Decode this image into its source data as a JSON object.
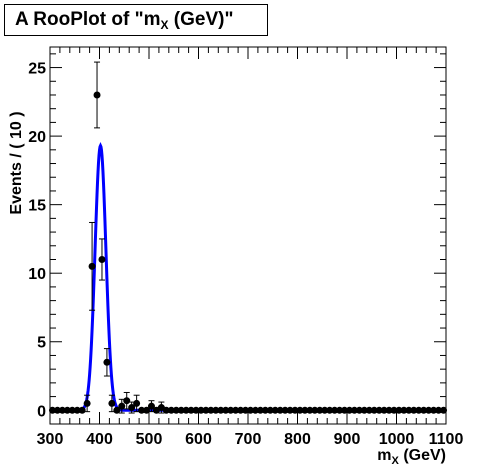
{
  "title": {
    "prefix": "A RooPlot of \"m",
    "subscript": "X",
    "suffix": " (GeV)\""
  },
  "colors": {
    "curve": "#0000ff",
    "points": "#000000",
    "frame": "#000000"
  },
  "chart_data": {
    "type": "scatter",
    "xlabel_main": "m",
    "xlabel_sub": "X",
    "xlabel_suffix": " (GeV)",
    "ylabel": "Events / ( 10 )",
    "xlim": [
      300,
      1100
    ],
    "ylim": [
      -1,
      26.5
    ],
    "x_ticks": [
      300,
      400,
      500,
      600,
      700,
      800,
      900,
      1000,
      1100
    ],
    "y_ticks": [
      0,
      5,
      10,
      15,
      20,
      25
    ],
    "legend": "none",
    "grid": false,
    "series": [
      {
        "kind": "data-points",
        "color": "#000000",
        "x": [
          305,
          315,
          325,
          335,
          345,
          355,
          365,
          375,
          385,
          395,
          405,
          415,
          425,
          435,
          445,
          455,
          465,
          475,
          485,
          495,
          505,
          515,
          525,
          535,
          545,
          555,
          565,
          575,
          585,
          595,
          605,
          615,
          625,
          635,
          645,
          655,
          665,
          675,
          685,
          695,
          705,
          715,
          725,
          735,
          745,
          755,
          765,
          775,
          785,
          795,
          805,
          815,
          825,
          835,
          845,
          855,
          865,
          875,
          885,
          895,
          905,
          915,
          925,
          935,
          945,
          955,
          965,
          975,
          985,
          995,
          1005,
          1015,
          1025,
          1035,
          1045,
          1055,
          1065,
          1075,
          1085,
          1095
        ],
        "y": [
          0,
          0,
          0,
          0,
          0,
          0,
          0,
          0.5,
          10.5,
          23,
          11,
          3.5,
          0.5,
          0,
          0.3,
          0.7,
          0.2,
          0.5,
          0,
          0,
          0.3,
          0,
          0.2,
          0,
          0,
          0,
          0,
          0,
          0,
          0,
          0,
          0,
          0,
          0,
          0,
          0,
          0,
          0,
          0,
          0,
          0,
          0,
          0,
          0,
          0,
          0,
          0,
          0,
          0,
          0,
          0,
          0,
          0,
          0,
          0,
          0,
          0,
          0,
          0,
          0,
          0,
          0,
          0,
          0,
          0,
          0,
          0,
          0,
          0,
          0,
          0,
          0,
          0,
          0,
          0,
          0,
          0,
          0,
          0,
          0
        ],
        "err": [
          0,
          0,
          0,
          0,
          0,
          0,
          0,
          0.6,
          3.2,
          2.4,
          1.5,
          1.0,
          0.6,
          0,
          0.5,
          0.6,
          0.4,
          0.6,
          0,
          0,
          0.4,
          0,
          0.4,
          0,
          0,
          0,
          0,
          0,
          0,
          0,
          0,
          0,
          0,
          0,
          0,
          0,
          0,
          0,
          0,
          0,
          0,
          0,
          0,
          0,
          0,
          0,
          0,
          0,
          0,
          0,
          0,
          0,
          0,
          0,
          0,
          0,
          0,
          0,
          0,
          0,
          0,
          0,
          0,
          0,
          0,
          0,
          0,
          0,
          0,
          0,
          0,
          0,
          0,
          0,
          0,
          0,
          0,
          0,
          0,
          0
        ]
      },
      {
        "kind": "fit-curve",
        "color": "#0000ff",
        "shape": "gaussian",
        "peak": 19.3,
        "mean": 402,
        "sigma": 11
      }
    ]
  }
}
